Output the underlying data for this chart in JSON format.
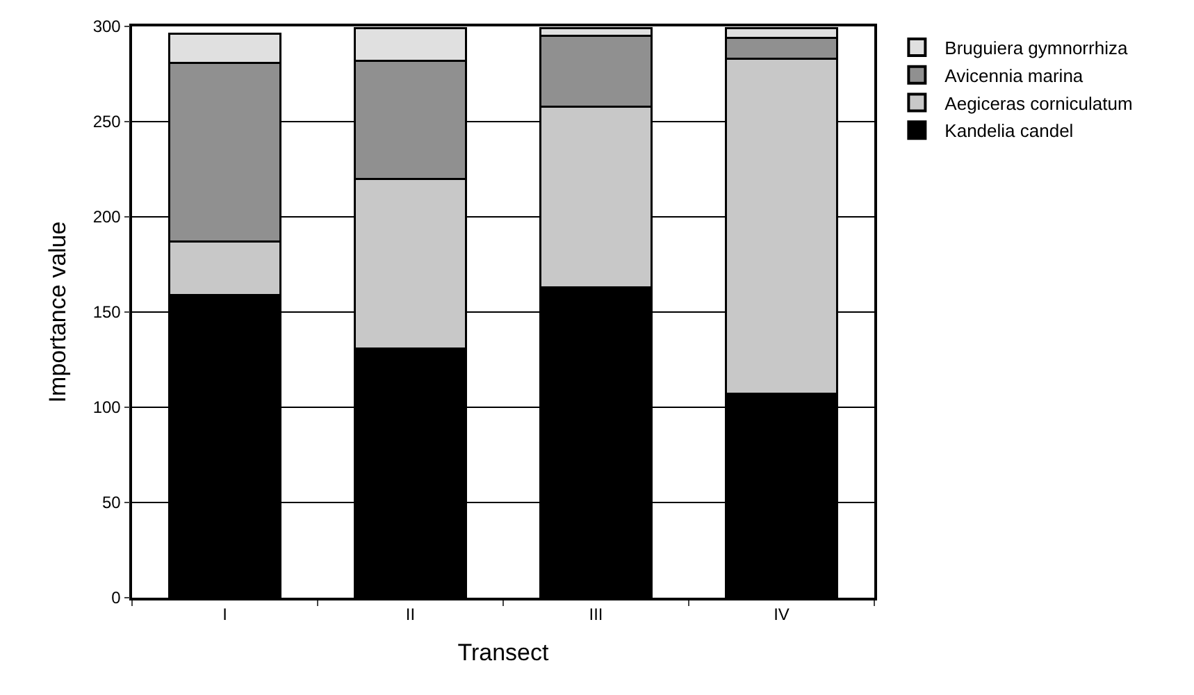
{
  "chart_data": {
    "type": "bar",
    "stacked": true,
    "xlabel": "Transect",
    "ylabel": "Importance value",
    "categories": [
      "I",
      "II",
      "III",
      "IV"
    ],
    "series": [
      {
        "name": "Kandelia candel",
        "color": "#000000",
        "values": [
          159,
          131,
          163,
          107
        ]
      },
      {
        "name": "Aegiceras corniculatum",
        "color": "#c8c8c8",
        "values": [
          28,
          89,
          95,
          176
        ]
      },
      {
        "name": "Avicennia marina",
        "color": "#909090",
        "values": [
          94,
          62,
          37,
          11
        ]
      },
      {
        "name": "Bruguiera gymnorrhiza",
        "color": "#e0e0e0",
        "values": [
          15,
          17,
          4,
          5
        ]
      }
    ],
    "ylim": [
      0,
      300
    ],
    "yticks": [
      0,
      50,
      100,
      150,
      200,
      250,
      300
    ],
    "grid": "y",
    "legend": "top right"
  }
}
